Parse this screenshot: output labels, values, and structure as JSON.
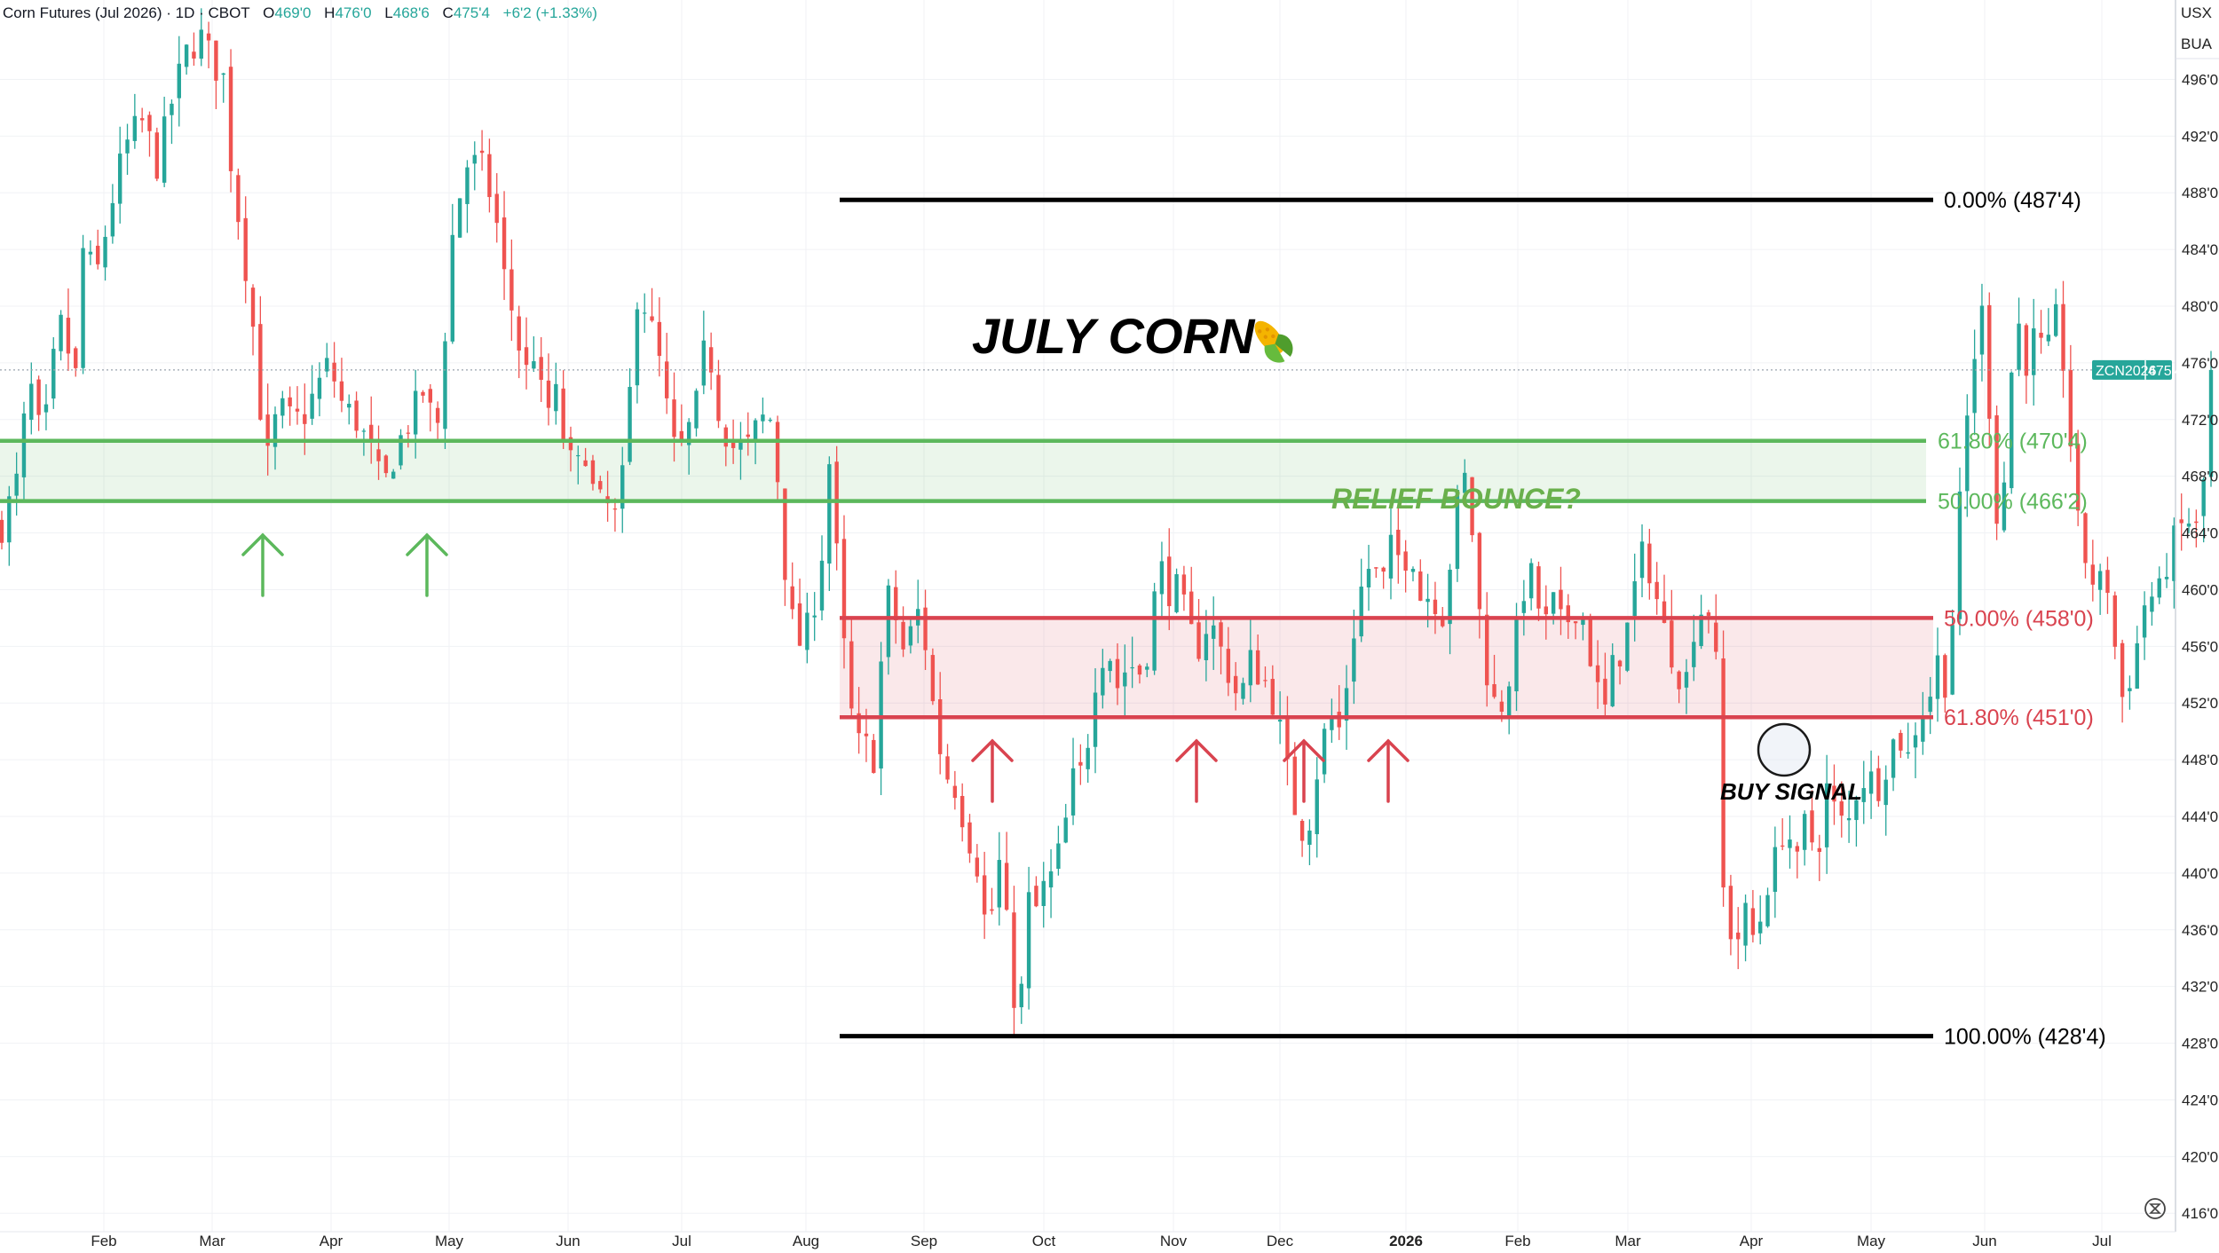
{
  "header": {
    "symbol_name": "Corn Futures (Jul 2026) · 1D · CBOT",
    "o_label": "O",
    "o_value": "469'0",
    "h_label": "H",
    "h_value": "476'0",
    "l_label": "L",
    "l_value": "468'6",
    "c_label": "C",
    "c_value": "475'4",
    "change": "+6'2 (+1.33%)",
    "currency": "USX",
    "unit": "BUA"
  },
  "price_tag": {
    "symbol": "ZCN2026",
    "value": "475'4",
    "price": 475.5
  },
  "annotations": {
    "title": "JULY CORN",
    "title_icon": "corn-icon",
    "relief_note": "RELIEF BOUNCE?",
    "buy_note": "BUY SIGNAL"
  },
  "colors": {
    "up": "#26a69a",
    "down": "#ef5350",
    "fib_green": "#5cb85c",
    "fib_red": "#d9434f",
    "fib_black": "#000000",
    "tag_bg": "#26a69a"
  },
  "chart_data": {
    "type": "candlestick",
    "title": "Corn Futures (Jul 2026)",
    "x_labels": [
      "Feb",
      "Mar",
      "Apr",
      "May",
      "Jun",
      "Jul",
      "Aug",
      "Sep",
      "Oct",
      "Nov",
      "Dec",
      "2026",
      "Feb",
      "Mar",
      "Apr",
      "May",
      "Jun",
      "Jul"
    ],
    "y_ticks": [
      {
        "v": 496,
        "label": "496'0"
      },
      {
        "v": 492,
        "label": "492'0"
      },
      {
        "v": 488,
        "label": "488'0"
      },
      {
        "v": 484,
        "label": "484'0"
      },
      {
        "v": 480,
        "label": "480'0"
      },
      {
        "v": 476,
        "label": "476'0"
      },
      {
        "v": 472,
        "label": "472'0"
      },
      {
        "v": 468,
        "label": "468'0"
      },
      {
        "v": 464,
        "label": "464'0"
      },
      {
        "v": 460,
        "label": "460'0"
      },
      {
        "v": 456,
        "label": "456'0"
      },
      {
        "v": 452,
        "label": "452'0"
      },
      {
        "v": 448,
        "label": "448'0"
      },
      {
        "v": 444,
        "label": "444'0"
      },
      {
        "v": 440,
        "label": "440'0"
      },
      {
        "v": 436,
        "label": "436'0"
      },
      {
        "v": 432,
        "label": "432'0"
      },
      {
        "v": 428,
        "label": "428'0"
      },
      {
        "v": 424,
        "label": "424'0"
      },
      {
        "v": 420,
        "label": "420'0"
      },
      {
        "v": 416,
        "label": "416'0"
      }
    ],
    "ylim": [
      414.7,
      501.6
    ],
    "grid": true,
    "trajectory": [
      [
        0,
        464.5
      ],
      [
        10,
        468
      ],
      [
        16,
        475
      ],
      [
        24,
        470
      ],
      [
        34,
        479
      ],
      [
        44,
        475
      ],
      [
        48,
        484
      ],
      [
        56,
        482
      ],
      [
        68,
        489
      ],
      [
        76,
        492
      ],
      [
        84,
        493
      ],
      [
        92,
        490
      ],
      [
        102,
        495
      ],
      [
        110,
        498
      ],
      [
        118,
        499
      ],
      [
        126,
        497
      ],
      [
        132,
        496
      ],
      [
        136,
        490
      ],
      [
        142,
        485
      ],
      [
        148,
        480
      ],
      [
        152,
        474
      ],
      [
        158,
        469
      ],
      [
        164,
        473
      ],
      [
        170,
        472
      ],
      [
        178,
        472
      ],
      [
        186,
        474
      ],
      [
        194,
        476
      ],
      [
        202,
        473
      ],
      [
        210,
        472
      ],
      [
        218,
        470
      ],
      [
        226,
        467
      ],
      [
        234,
        470
      ],
      [
        242,
        472
      ],
      [
        250,
        474
      ],
      [
        258,
        471
      ],
      [
        262,
        477
      ],
      [
        268,
        486
      ],
      [
        276,
        490
      ],
      [
        284,
        490
      ],
      [
        292,
        487
      ],
      [
        298,
        482
      ],
      [
        304,
        479
      ],
      [
        310,
        475
      ],
      [
        316,
        477
      ],
      [
        322,
        472
      ],
      [
        328,
        474
      ],
      [
        334,
        470
      ],
      [
        340,
        468
      ],
      [
        346,
        470
      ],
      [
        352,
        466
      ],
      [
        358,
        466
      ],
      [
        364,
        465
      ],
      [
        370,
        469
      ],
      [
        376,
        481
      ],
      [
        382,
        480
      ],
      [
        390,
        476
      ],
      [
        398,
        470
      ],
      [
        404,
        470
      ],
      [
        412,
        473
      ],
      [
        418,
        478
      ],
      [
        426,
        472
      ],
      [
        434,
        470
      ],
      [
        442,
        470
      ],
      [
        450,
        472
      ],
      [
        458,
        472
      ],
      [
        462,
        464
      ],
      [
        468,
        458
      ],
      [
        474,
        456
      ],
      [
        480,
        458
      ],
      [
        486,
        462
      ],
      [
        490,
        470
      ],
      [
        494,
        464
      ],
      [
        500,
        455
      ],
      [
        506,
        449
      ],
      [
        512,
        449
      ],
      [
        518,
        448
      ],
      [
        524,
        460
      ],
      [
        530,
        458
      ],
      [
        536,
        455
      ],
      [
        542,
        459
      ],
      [
        548,
        456
      ],
      [
        554,
        450
      ],
      [
        560,
        447
      ],
      [
        566,
        446
      ],
      [
        572,
        443
      ],
      [
        578,
        441
      ],
      [
        582,
        437
      ],
      [
        586,
        436
      ],
      [
        590,
        441
      ],
      [
        594,
        440
      ],
      [
        598,
        432
      ],
      [
        602,
        431
      ],
      [
        606,
        432
      ],
      [
        610,
        440
      ],
      [
        614,
        437
      ],
      [
        618,
        439
      ],
      [
        624,
        440
      ],
      [
        630,
        443
      ],
      [
        636,
        447
      ],
      [
        642,
        447
      ],
      [
        646,
        452
      ],
      [
        650,
        455
      ],
      [
        656,
        456
      ],
      [
        662,
        453
      ],
      [
        668,
        455
      ],
      [
        674,
        454
      ],
      [
        680,
        456
      ],
      [
        686,
        462
      ],
      [
        692,
        460
      ],
      [
        698,
        460
      ],
      [
        704,
        457
      ],
      [
        710,
        456
      ],
      [
        716,
        458
      ],
      [
        722,
        456
      ],
      [
        728,
        454
      ],
      [
        734,
        452
      ],
      [
        740,
        455
      ],
      [
        746,
        454
      ],
      [
        752,
        453
      ],
      [
        758,
        450
      ],
      [
        764,
        446
      ],
      [
        770,
        443
      ],
      [
        776,
        444
      ],
      [
        782,
        449
      ],
      [
        788,
        451
      ],
      [
        794,
        450
      ],
      [
        800,
        456
      ],
      [
        806,
        460
      ],
      [
        812,
        462
      ],
      [
        818,
        460
      ],
      [
        824,
        463
      ],
      [
        830,
        462
      ],
      [
        836,
        463
      ],
      [
        842,
        459
      ],
      [
        848,
        460
      ],
      [
        854,
        458
      ],
      [
        860,
        463
      ],
      [
        866,
        469
      ],
      [
        872,
        464
      ],
      [
        878,
        456
      ],
      [
        884,
        452
      ],
      [
        890,
        452
      ],
      [
        896,
        455
      ],
      [
        902,
        460
      ],
      [
        908,
        461
      ],
      [
        914,
        457
      ],
      [
        920,
        459
      ],
      [
        926,
        457
      ],
      [
        932,
        459
      ],
      [
        938,
        458
      ],
      [
        944,
        454
      ],
      [
        950,
        451
      ],
      [
        956,
        455
      ],
      [
        962,
        456
      ],
      [
        968,
        460
      ],
      [
        974,
        463
      ],
      [
        980,
        460
      ],
      [
        986,
        457
      ],
      [
        992,
        455
      ],
      [
        998,
        453
      ],
      [
        1004,
        458
      ],
      [
        1010,
        459
      ],
      [
        1016,
        458
      ],
      [
        1018,
        443
      ],
      [
        1022,
        437
      ],
      [
        1028,
        435
      ],
      [
        1034,
        437
      ],
      [
        1040,
        435
      ],
      [
        1046,
        439
      ],
      [
        1052,
        441
      ],
      [
        1058,
        444
      ],
      [
        1064,
        440
      ],
      [
        1070,
        444
      ],
      [
        1076,
        441
      ],
      [
        1082,
        446
      ],
      [
        1088,
        444
      ],
      [
        1094,
        443
      ],
      [
        1100,
        446
      ],
      [
        1106,
        447
      ],
      [
        1112,
        446
      ],
      [
        1118,
        448
      ],
      [
        1124,
        450
      ],
      [
        1130,
        448
      ],
      [
        1136,
        451
      ],
      [
        1142,
        452
      ],
      [
        1148,
        455
      ],
      [
        1154,
        453
      ],
      [
        1160,
        464
      ],
      [
        1164,
        471
      ],
      [
        1168,
        474
      ],
      [
        1172,
        480
      ],
      [
        1176,
        479
      ],
      [
        1182,
        465
      ],
      [
        1188,
        468
      ],
      [
        1194,
        480
      ],
      [
        1200,
        476
      ],
      [
        1206,
        478
      ],
      [
        1212,
        476
      ],
      [
        1218,
        479
      ],
      [
        1224,
        475
      ],
      [
        1230,
        465
      ],
      [
        1236,
        462
      ],
      [
        1242,
        460
      ],
      [
        1248,
        461
      ],
      [
        1254,
        455
      ],
      [
        1258,
        452
      ],
      [
        1262,
        454
      ],
      [
        1266,
        456
      ],
      [
        1272,
        460
      ],
      [
        1278,
        459
      ],
      [
        1284,
        462
      ],
      [
        1290,
        464
      ],
      [
        1296,
        465
      ],
      [
        1302,
        464
      ],
      [
        1306,
        468
      ],
      [
        1310,
        475.5
      ]
    ],
    "candle_count": 300,
    "fib_levels": [
      {
        "label": "0.00% (487'4)",
        "value": 487.5,
        "color": "black"
      },
      {
        "label": "61.80% (470'4)",
        "value": 470.5,
        "color": "green"
      },
      {
        "label": "50.00% (466'2)",
        "value": 466.25,
        "color": "green"
      },
      {
        "label": "50.00% (458'0)",
        "value": 458.0,
        "color": "red"
      },
      {
        "label": "61.80% (451'0)",
        "value": 451.0,
        "color": "red"
      },
      {
        "label": "100.00% (428'4)",
        "value": 428.5,
        "color": "black"
      }
    ]
  }
}
